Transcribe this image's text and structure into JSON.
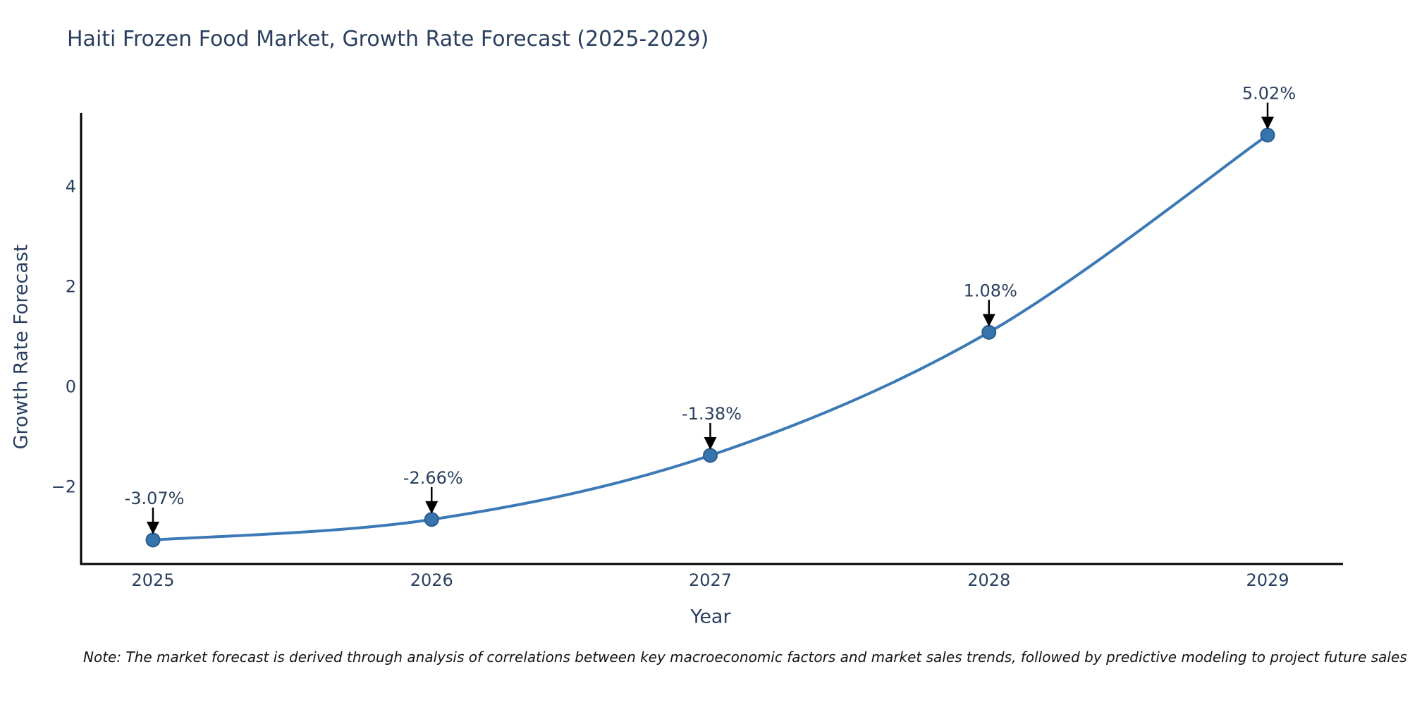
{
  "chart_data": {
    "type": "line",
    "title": "Haiti Frozen Food Market, Growth Rate Forecast (2025-2029)",
    "xlabel": "Year",
    "ylabel": "Growth Rate Forecast",
    "x": [
      2025,
      2026,
      2027,
      2028,
      2029
    ],
    "y": [
      -3.07,
      -2.66,
      -1.38,
      1.08,
      5.02
    ],
    "point_labels": [
      "-3.07%",
      "-2.66%",
      "-1.38%",
      "1.08%",
      "5.02%"
    ],
    "xtick_labels": [
      "2025",
      "2026",
      "2027",
      "2028",
      "2029"
    ],
    "ytick_values": [
      4,
      2,
      0,
      -2
    ],
    "ytick_labels": [
      "4",
      "2",
      "0",
      "−2"
    ],
    "ylim": [
      -3.55,
      5.46
    ],
    "grid": false,
    "legend": null,
    "smooth": true,
    "colors": {
      "line": "#3c79b6",
      "marker_fill": "#3674ae",
      "marker_edge": "#2b5d8e",
      "annotation_arrow": "#000000",
      "text": "#2a3f5f",
      "spine": "#000000"
    }
  },
  "note": {
    "text": "Note: The market forecast is derived through analysis of correlations between key macroeconomic factors and market sales trends, followed by predictive modeling to project future sales"
  }
}
